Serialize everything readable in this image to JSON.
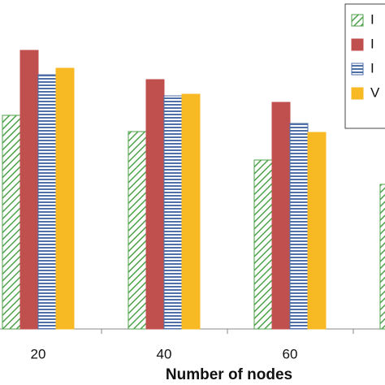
{
  "chart_data": {
    "type": "bar",
    "x_label": "Number of nodes",
    "categories": [
      "20",
      "40",
      "60",
      null
    ],
    "series": [
      {
        "name": "I",
        "color": "#4ea24a",
        "values": [
          263,
          243,
          208,
          178
        ]
      },
      {
        "name": "I",
        "color": "#c0504d",
        "values": [
          343,
          307,
          279,
          null
        ]
      },
      {
        "name": "I",
        "color": "#4f6fa8",
        "values": [
          313,
          287,
          253,
          null
        ]
      },
      {
        "name": "V",
        "color": "#f7b924",
        "values": [
          321,
          289,
          242,
          null
        ]
      }
    ],
    "ylim": [
      0,
      405
    ]
  }
}
